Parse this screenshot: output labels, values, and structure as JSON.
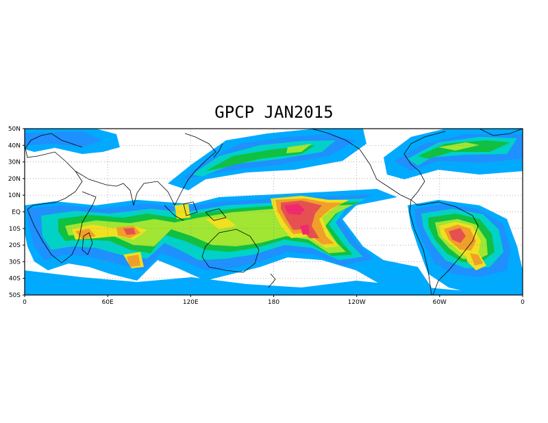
{
  "title": "GPCP JAN2015",
  "y_ticks": [
    "50N",
    "40N",
    "30N",
    "20N",
    "10N",
    "EQ",
    "10S",
    "20S",
    "30S",
    "40S",
    "50S"
  ],
  "x_ticks": [
    "0",
    "60E",
    "120E",
    "180",
    "120W",
    "60W",
    "0"
  ],
  "colors": {
    "light": "#00aaff",
    "blue": "#1e90ff",
    "cyan": "#00d2c8",
    "green": "#10c040",
    "lime": "#a0e632",
    "yellow": "#f0e020",
    "orange": "#f0a028",
    "red": "#e65050",
    "magenta": "#f0286e"
  },
  "grid": "dotted",
  "precip_fields": [
    {
      "level": "light",
      "lon": 0,
      "lat": 48,
      "width": 60,
      "height": 8
    },
    {
      "level": "light",
      "lon": 160,
      "lat": 40,
      "width": 100,
      "height": 12
    }
  ]
}
